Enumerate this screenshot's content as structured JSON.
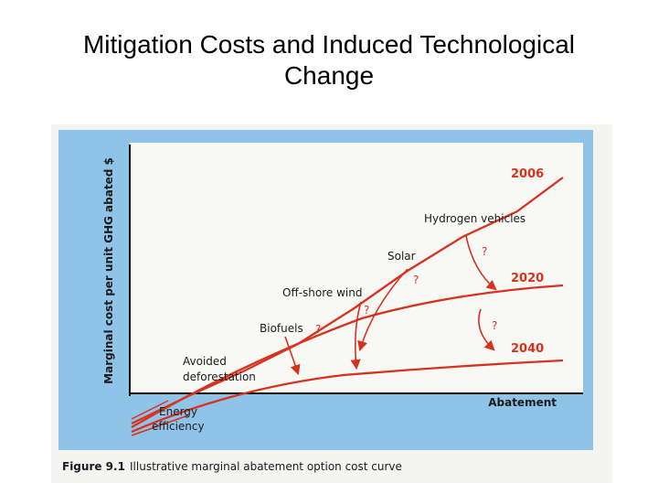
{
  "slide": {
    "title_line1": "Mitigation Costs and Induced Technological",
    "title_line2": "Change"
  },
  "figure": {
    "y_axis_label": "Marginal cost per unit GHG abated $",
    "x_axis_label": "Abatement",
    "caption_number": "Figure 9.1",
    "caption_text": "Illustrative marginal abatement option cost curve",
    "curves": [
      "2006",
      "2020",
      "2040"
    ],
    "options": {
      "energy_efficiency_1": "Energy",
      "energy_efficiency_2": "efficiency",
      "avoided_deforestation_1": "Avoided",
      "avoided_deforestation_2": "deforestation",
      "biofuels": "Biofuels",
      "offshore_wind": "Off-shore wind",
      "solar": "Solar",
      "hydrogen_vehicles": "Hydrogen vehicles"
    },
    "uncertainty_mark": "?",
    "colors": {
      "panel_blue": "#8fc3e8",
      "curve_red": "#d8321f",
      "axis_black": "#111111"
    }
  }
}
